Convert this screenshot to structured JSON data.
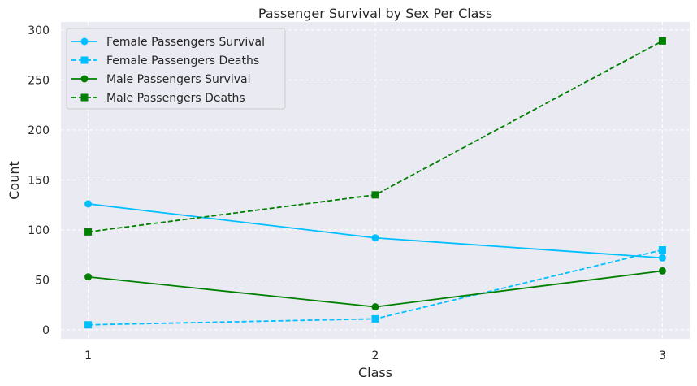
{
  "chart_data": {
    "type": "line",
    "title": "Passenger Survival by Sex Per Class",
    "xlabel": "Class",
    "ylabel": "Count",
    "x": [
      1,
      2,
      3
    ],
    "xticks": [
      "1",
      "2",
      "3"
    ],
    "yticks": [
      0,
      50,
      100,
      150,
      200,
      250,
      300
    ],
    "ylim": [
      -9,
      308
    ],
    "grid": true,
    "legend_position": "top-left",
    "series": [
      {
        "name": "Female Passengers Survival",
        "values": [
          126,
          92,
          72
        ],
        "color": "#00bfff",
        "linestyle": "solid",
        "marker": "circle"
      },
      {
        "name": "Female Passengers Deaths",
        "values": [
          5,
          11,
          80
        ],
        "color": "#00bfff",
        "linestyle": "dashed",
        "marker": "square"
      },
      {
        "name": "Male Passengers Survival",
        "values": [
          53,
          23,
          59
        ],
        "color": "#008000",
        "linestyle": "solid",
        "marker": "circle"
      },
      {
        "name": "Male Passengers Deaths",
        "values": [
          98,
          135,
          289
        ],
        "color": "#008000",
        "linestyle": "dashed",
        "marker": "square"
      }
    ]
  }
}
